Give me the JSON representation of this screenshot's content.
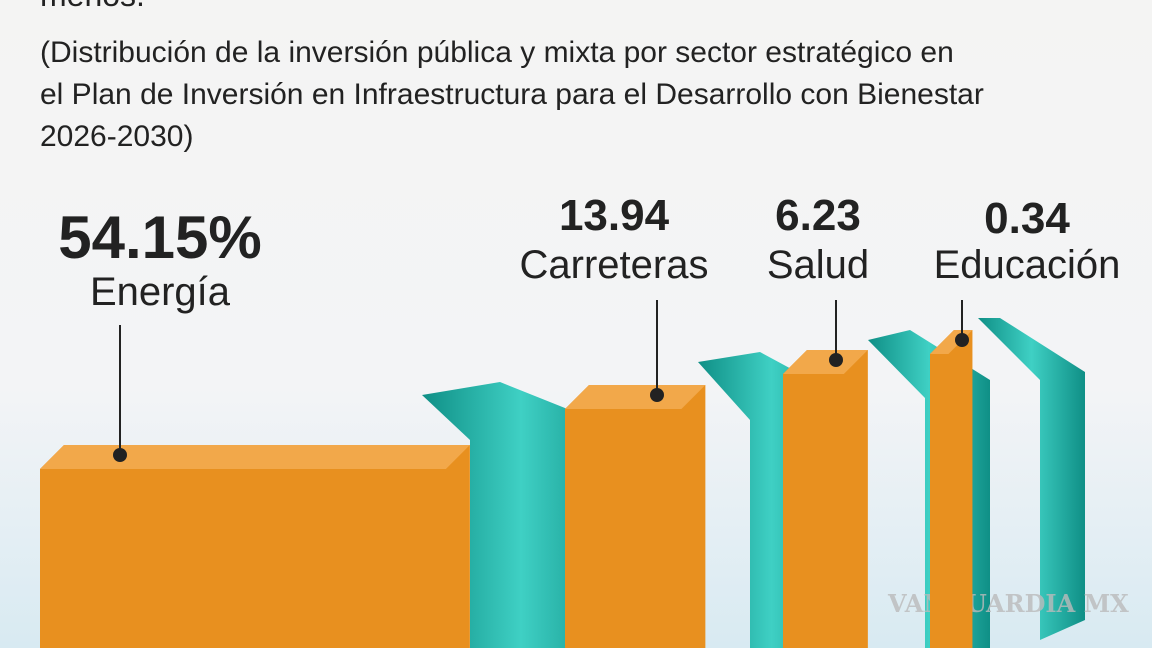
{
  "chart_data": {
    "type": "bar",
    "title": "menos.",
    "subtitle": [
      "(Distribución de la inversión pública y mixta por sector estratégico en",
      "el Plan de Inversión en Infraestructura para el Desarrollo con Bienestar",
      "2026-2030)"
    ],
    "categories": [
      "Energía",
      "Carreteras",
      "Salud",
      "Educación"
    ],
    "values": [
      54.15,
      13.94,
      6.23,
      0.34
    ],
    "value_labels": [
      "54.15%",
      "13.94",
      "6.23",
      "0.34"
    ],
    "color": "#e8901f",
    "watermark": "VANGUARDIA MX"
  }
}
